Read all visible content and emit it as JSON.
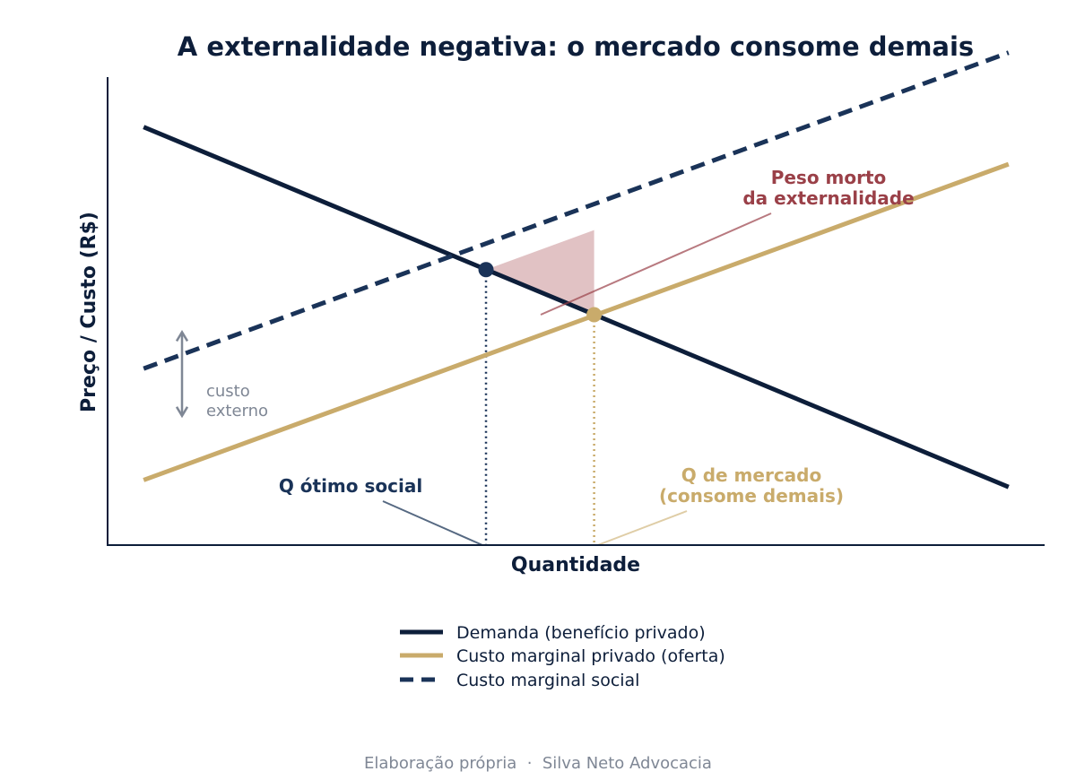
{
  "chart_data": {
    "type": "line",
    "title": "A externalidade negativa: o mercado consome demais",
    "xlabel": "Quantidade",
    "ylabel": "Preço / Custo (R$)",
    "ticks_shown": false,
    "grid": false,
    "legend_position": "bottom-center",
    "series": [
      {
        "name": "Demanda (benefício privado)",
        "style": "solid",
        "color": "#0d1e3a",
        "x": [
          0.4,
          10.0
        ],
        "y": [
          9.0,
          1.25
        ]
      },
      {
        "name": "Custo marginal privado (oferta)",
        "style": "solid",
        "color": "#c9ab6b",
        "x": [
          0.4,
          10.0
        ],
        "y": [
          1.4,
          8.2
        ]
      },
      {
        "name": "Custo marginal social",
        "style": "dashed",
        "color": "#1a3358",
        "x": [
          0.4,
          10.0
        ],
        "y": [
          3.8,
          10.6
        ]
      }
    ],
    "points": [
      {
        "id": "social_optimum",
        "x": 4.2,
        "y": 5.93,
        "color": "#1a3358"
      },
      {
        "id": "market_equilibrium",
        "x": 5.4,
        "y": 4.96,
        "color": "#c9ab6b"
      }
    ],
    "deadweight_region": {
      "color": "#c88f94",
      "vertices": [
        [
          4.2,
          5.93
        ],
        [
          5.4,
          6.78
        ],
        [
          5.4,
          4.96
        ]
      ]
    },
    "annotations": {
      "q_social": "Q ótimo social",
      "q_market_line1": "Q de mercado",
      "q_market_line2": "(consome demais)",
      "deadweight_line1": "Peso morto",
      "deadweight_line2": "da externalidade",
      "external_cost_line1": "custo",
      "external_cost_line2": "externo"
    },
    "xlim": [
      0,
      10.4
    ],
    "ylim": [
      0,
      11.0
    ],
    "source": "Elaboração própria  ·  Silva Neto Advocacia"
  },
  "colors": {
    "navy": "#0d1e3a",
    "navy_dashed": "#1a3358",
    "gold": "#c9ab6b",
    "deadweight_text": "#9a4048",
    "grey": "#7f8795"
  }
}
